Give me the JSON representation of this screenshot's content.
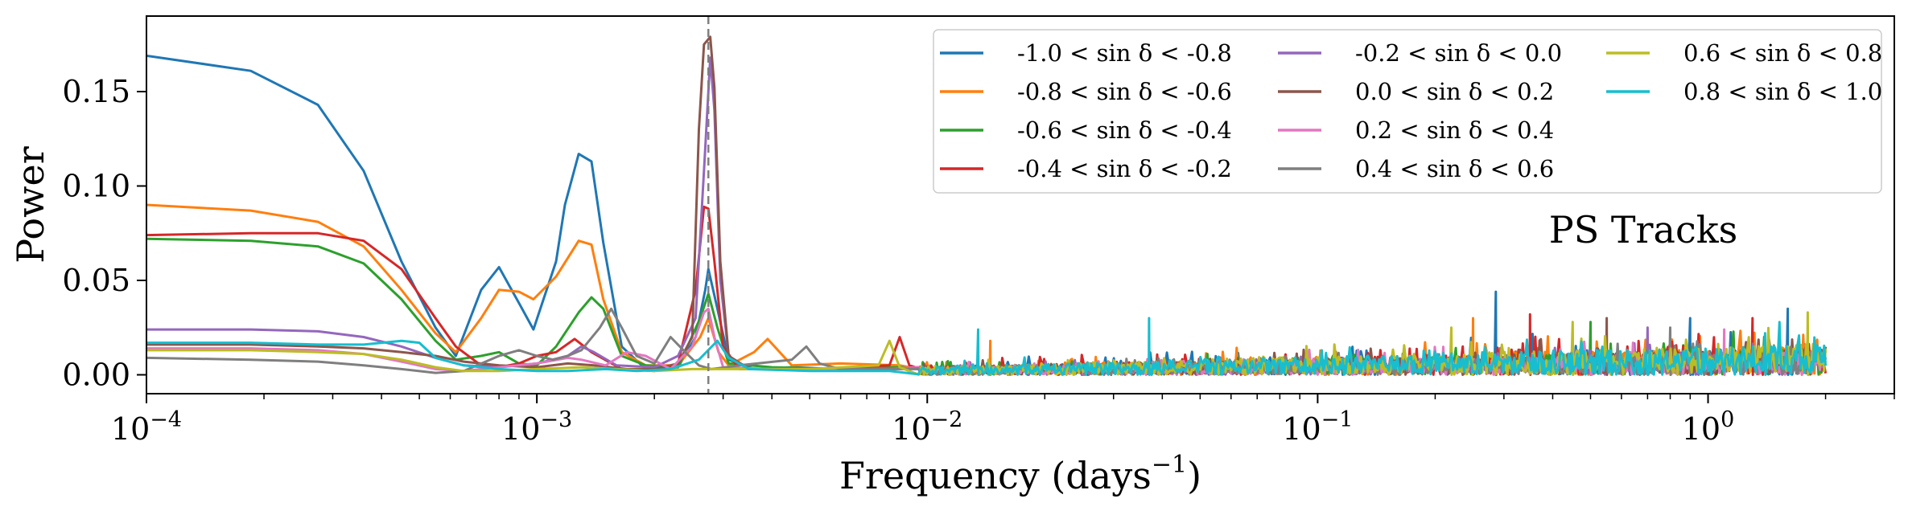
{
  "chart_data": {
    "type": "line",
    "annotation": "PS Tracks",
    "xlabel": "Frequency (days",
    "xlabel_exponent": "−1",
    "xlabel_close": ")",
    "ylabel": "Power",
    "xscale": "log",
    "xlim": [
      0.0001,
      3.0
    ],
    "ylim": [
      -0.01,
      0.19
    ],
    "grid": false,
    "legend_position": "top-right",
    "reference_line": {
      "x": 0.00275,
      "style": "dashed",
      "color": "#808080"
    },
    "x_ticks": [
      {
        "value": 0.0001,
        "base": "10",
        "exp": "−4"
      },
      {
        "value": 0.001,
        "base": "10",
        "exp": "−3"
      },
      {
        "value": 0.01,
        "base": "10",
        "exp": "−2"
      },
      {
        "value": 0.1,
        "base": "10",
        "exp": "−1"
      },
      {
        "value": 1,
        "base": "10",
        "exp": "0"
      }
    ],
    "y_ticks": [
      {
        "value": 0.0,
        "label": "0.00"
      },
      {
        "value": 0.05,
        "label": "0.05"
      },
      {
        "value": 0.1,
        "label": "0.10"
      },
      {
        "value": 0.15,
        "label": "0.15"
      }
    ],
    "noise": {
      "x_start": 0.0095,
      "x_end": 2.0
    },
    "series": [
      {
        "name": "-1.0 < sin δ < -0.8",
        "color": "#1f77b4",
        "points": [
          [
            0.0001,
            0.169
          ],
          [
            0.000185,
            0.161
          ],
          [
            0.000275,
            0.143
          ],
          [
            0.00036,
            0.108
          ],
          [
            0.00045,
            0.06
          ],
          [
            0.00055,
            0.025
          ],
          [
            0.00062,
            0.01
          ],
          [
            0.00072,
            0.045
          ],
          [
            0.0008,
            0.057
          ],
          [
            0.0009,
            0.038
          ],
          [
            0.00098,
            0.024
          ],
          [
            0.00112,
            0.06
          ],
          [
            0.00118,
            0.09
          ],
          [
            0.00128,
            0.117
          ],
          [
            0.00138,
            0.113
          ],
          [
            0.00148,
            0.07
          ],
          [
            0.00165,
            0.015
          ],
          [
            0.0019,
            0.003
          ],
          [
            0.0023,
            0.004
          ],
          [
            0.00255,
            0.02
          ],
          [
            0.0027,
            0.045
          ],
          [
            0.00275,
            0.056
          ],
          [
            0.0029,
            0.035
          ],
          [
            0.0031,
            0.008
          ],
          [
            0.0036,
            0.003
          ],
          [
            0.0045,
            0.004
          ],
          [
            0.006,
            0.003
          ],
          [
            0.0085,
            0.005
          ]
        ],
        "noise_amp": 0.012,
        "noise_spikes": [
          [
            0.286,
            0.044
          ],
          [
            1.6,
            0.035
          ],
          [
            0.9,
            0.03
          ]
        ]
      },
      {
        "name": "-0.8 < sin δ < -0.6",
        "color": "#ff7f0e",
        "points": [
          [
            0.0001,
            0.09
          ],
          [
            0.000185,
            0.087
          ],
          [
            0.000275,
            0.081
          ],
          [
            0.00036,
            0.068
          ],
          [
            0.00045,
            0.045
          ],
          [
            0.00055,
            0.022
          ],
          [
            0.00062,
            0.012
          ],
          [
            0.00072,
            0.03
          ],
          [
            0.0008,
            0.045
          ],
          [
            0.0009,
            0.044
          ],
          [
            0.00098,
            0.04
          ],
          [
            0.00112,
            0.052
          ],
          [
            0.00128,
            0.071
          ],
          [
            0.00138,
            0.069
          ],
          [
            0.00148,
            0.04
          ],
          [
            0.00165,
            0.012
          ],
          [
            0.0019,
            0.005
          ],
          [
            0.0023,
            0.005
          ],
          [
            0.00262,
            0.02
          ],
          [
            0.00275,
            0.03
          ],
          [
            0.00292,
            0.012
          ],
          [
            0.0031,
            0.005
          ],
          [
            0.0036,
            0.012
          ],
          [
            0.0039,
            0.019
          ],
          [
            0.0045,
            0.005
          ],
          [
            0.006,
            0.006
          ],
          [
            0.0085,
            0.005
          ]
        ],
        "noise_amp": 0.012,
        "noise_spikes": [
          [
            0.0145,
            0.018
          ],
          [
            0.25,
            0.03
          ]
        ]
      },
      {
        "name": "-0.6 < sin δ < -0.4",
        "color": "#2ca02c",
        "points": [
          [
            0.0001,
            0.072
          ],
          [
            0.000185,
            0.071
          ],
          [
            0.000275,
            0.068
          ],
          [
            0.00036,
            0.059
          ],
          [
            0.00045,
            0.04
          ],
          [
            0.00055,
            0.018
          ],
          [
            0.00062,
            0.008
          ],
          [
            0.00072,
            0.01
          ],
          [
            0.0008,
            0.012
          ],
          [
            0.0009,
            0.006
          ],
          [
            0.001,
            0.005
          ],
          [
            0.00112,
            0.015
          ],
          [
            0.00128,
            0.033
          ],
          [
            0.00138,
            0.041
          ],
          [
            0.00148,
            0.035
          ],
          [
            0.00165,
            0.01
          ],
          [
            0.0019,
            0.005
          ],
          [
            0.0023,
            0.004
          ],
          [
            0.00262,
            0.03
          ],
          [
            0.00275,
            0.043
          ],
          [
            0.0029,
            0.025
          ],
          [
            0.0031,
            0.006
          ],
          [
            0.004,
            0.004
          ],
          [
            0.006,
            0.003
          ],
          [
            0.0085,
            0.004
          ]
        ],
        "noise_amp": 0.011,
        "noise_spikes": [
          [
            0.5,
            0.028
          ]
        ]
      },
      {
        "name": "-0.4 < sin δ < -0.2",
        "color": "#d62728",
        "points": [
          [
            0.0001,
            0.074
          ],
          [
            0.000185,
            0.075
          ],
          [
            0.000275,
            0.075
          ],
          [
            0.00036,
            0.071
          ],
          [
            0.00045,
            0.056
          ],
          [
            0.00055,
            0.03
          ],
          [
            0.00062,
            0.015
          ],
          [
            0.00072,
            0.005
          ],
          [
            0.0008,
            0.004
          ],
          [
            0.0009,
            0.006
          ],
          [
            0.001,
            0.01
          ],
          [
            0.00112,
            0.012
          ],
          [
            0.00125,
            0.019
          ],
          [
            0.00138,
            0.012
          ],
          [
            0.00165,
            0.003
          ],
          [
            0.002,
            0.002
          ],
          [
            0.0023,
            0.006
          ],
          [
            0.00255,
            0.045
          ],
          [
            0.00268,
            0.089
          ],
          [
            0.00275,
            0.088
          ],
          [
            0.00285,
            0.06
          ],
          [
            0.003,
            0.015
          ],
          [
            0.0033,
            0.003
          ],
          [
            0.005,
            0.003
          ],
          [
            0.008,
            0.005
          ],
          [
            0.0085,
            0.02
          ],
          [
            0.009,
            0.005
          ]
        ],
        "noise_amp": 0.012,
        "noise_spikes": [
          [
            0.35,
            0.032
          ],
          [
            1.3,
            0.03
          ]
        ]
      },
      {
        "name": "-0.2 < sin δ < 0.0",
        "color": "#9467bd",
        "points": [
          [
            0.0001,
            0.024
          ],
          [
            0.000185,
            0.024
          ],
          [
            0.000275,
            0.023
          ],
          [
            0.00036,
            0.02
          ],
          [
            0.00045,
            0.015
          ],
          [
            0.00055,
            0.009
          ],
          [
            0.00065,
            0.005
          ],
          [
            0.0008,
            0.004
          ],
          [
            0.001,
            0.006
          ],
          [
            0.0012,
            0.01
          ],
          [
            0.0013,
            0.015
          ],
          [
            0.0014,
            0.012
          ],
          [
            0.0016,
            0.005
          ],
          [
            0.002,
            0.004
          ],
          [
            0.0023,
            0.01
          ],
          [
            0.00255,
            0.03
          ],
          [
            0.0027,
            0.12
          ],
          [
            0.00278,
            0.168
          ],
          [
            0.00285,
            0.14
          ],
          [
            0.00295,
            0.05
          ],
          [
            0.0031,
            0.01
          ],
          [
            0.0035,
            0.003
          ],
          [
            0.005,
            0.003
          ],
          [
            0.008,
            0.003
          ]
        ],
        "noise_amp": 0.01,
        "noise_spikes": [
          [
            0.7,
            0.025
          ]
        ]
      },
      {
        "name": "0.0 < sin δ < 0.2",
        "color": "#8c564b",
        "points": [
          [
            0.0001,
            0.016
          ],
          [
            0.000185,
            0.016
          ],
          [
            0.000275,
            0.015
          ],
          [
            0.00036,
            0.014
          ],
          [
            0.00045,
            0.012
          ],
          [
            0.00055,
            0.01
          ],
          [
            0.00065,
            0.007
          ],
          [
            0.0008,
            0.005
          ],
          [
            0.001,
            0.004
          ],
          [
            0.0012,
            0.006
          ],
          [
            0.0014,
            0.005
          ],
          [
            0.0017,
            0.003
          ],
          [
            0.002,
            0.003
          ],
          [
            0.0023,
            0.006
          ],
          [
            0.0025,
            0.02
          ],
          [
            0.0026,
            0.13
          ],
          [
            0.00268,
            0.175
          ],
          [
            0.00278,
            0.179
          ],
          [
            0.00285,
            0.152
          ],
          [
            0.00295,
            0.06
          ],
          [
            0.0031,
            0.01
          ],
          [
            0.0035,
            0.003
          ],
          [
            0.005,
            0.003
          ],
          [
            0.008,
            0.003
          ]
        ],
        "noise_amp": 0.011,
        "noise_spikes": [
          [
            0.55,
            0.03
          ]
        ]
      },
      {
        "name": "0.2 < sin δ < 0.4",
        "color": "#e377c2",
        "points": [
          [
            0.0001,
            0.014
          ],
          [
            0.000185,
            0.014
          ],
          [
            0.000275,
            0.013
          ],
          [
            0.00036,
            0.011
          ],
          [
            0.00045,
            0.007
          ],
          [
            0.00055,
            0.003
          ],
          [
            0.00065,
            0.002
          ],
          [
            0.0008,
            0.004
          ],
          [
            0.001,
            0.006
          ],
          [
            0.0012,
            0.009
          ],
          [
            0.0013,
            0.008
          ],
          [
            0.0015,
            0.005
          ],
          [
            0.0017,
            0.012
          ],
          [
            0.0019,
            0.01
          ],
          [
            0.0022,
            0.003
          ],
          [
            0.0025,
            0.015
          ],
          [
            0.00268,
            0.033
          ],
          [
            0.00275,
            0.035
          ],
          [
            0.00285,
            0.02
          ],
          [
            0.003,
            0.004
          ],
          [
            0.004,
            0.003
          ],
          [
            0.006,
            0.003
          ],
          [
            0.008,
            0.003
          ]
        ],
        "noise_amp": 0.01,
        "noise_spikes": [
          [
            1.1,
            0.024
          ]
        ]
      },
      {
        "name": "0.4 < sin δ < 0.6",
        "color": "#7f7f7f",
        "points": [
          [
            0.0001,
            0.009
          ],
          [
            0.000185,
            0.008
          ],
          [
            0.000275,
            0.007
          ],
          [
            0.00036,
            0.005
          ],
          [
            0.00045,
            0.003
          ],
          [
            0.00055,
            0.001
          ],
          [
            0.00065,
            0.002
          ],
          [
            0.0008,
            0.01
          ],
          [
            0.0009,
            0.013
          ],
          [
            0.001,
            0.01
          ],
          [
            0.0011,
            0.008
          ],
          [
            0.0012,
            0.01
          ],
          [
            0.0013,
            0.013
          ],
          [
            0.00145,
            0.025
          ],
          [
            0.00155,
            0.035
          ],
          [
            0.00165,
            0.025
          ],
          [
            0.0018,
            0.01
          ],
          [
            0.002,
            0.006
          ],
          [
            0.0022,
            0.02
          ],
          [
            0.0024,
            0.012
          ],
          [
            0.0026,
            0.005
          ],
          [
            0.0028,
            0.003
          ],
          [
            0.0033,
            0.005
          ],
          [
            0.0045,
            0.008
          ],
          [
            0.0049,
            0.015
          ],
          [
            0.0053,
            0.006
          ],
          [
            0.006,
            0.003
          ],
          [
            0.008,
            0.003
          ]
        ],
        "noise_amp": 0.01,
        "noise_spikes": [
          [
            0.8,
            0.025
          ]
        ]
      },
      {
        "name": "0.6 < sin δ < 0.8",
        "color": "#bcbd22",
        "points": [
          [
            0.0001,
            0.013
          ],
          [
            0.000185,
            0.013
          ],
          [
            0.000275,
            0.012
          ],
          [
            0.00036,
            0.011
          ],
          [
            0.00045,
            0.008
          ],
          [
            0.00055,
            0.004
          ],
          [
            0.00065,
            0.002
          ],
          [
            0.0008,
            0.002
          ],
          [
            0.001,
            0.003
          ],
          [
            0.0013,
            0.004
          ],
          [
            0.0016,
            0.003
          ],
          [
            0.002,
            0.002
          ],
          [
            0.0025,
            0.003
          ],
          [
            0.003,
            0.003
          ],
          [
            0.005,
            0.003
          ],
          [
            0.0075,
            0.005
          ],
          [
            0.008,
            0.018
          ],
          [
            0.0085,
            0.004
          ]
        ],
        "noise_amp": 0.013,
        "noise_spikes": [
          [
            1.8,
            0.033
          ],
          [
            0.45,
            0.028
          ],
          [
            0.22,
            0.025
          ]
        ]
      },
      {
        "name": "0.8 < sin δ < 1.0",
        "color": "#17becf",
        "points": [
          [
            0.0001,
            0.017
          ],
          [
            0.000185,
            0.017
          ],
          [
            0.000275,
            0.016
          ],
          [
            0.00036,
            0.016
          ],
          [
            0.00045,
            0.018
          ],
          [
            0.0005,
            0.017
          ],
          [
            0.00055,
            0.009
          ],
          [
            0.00065,
            0.005
          ],
          [
            0.0008,
            0.003
          ],
          [
            0.001,
            0.002
          ],
          [
            0.0012,
            0.002
          ],
          [
            0.0015,
            0.003
          ],
          [
            0.0018,
            0.002
          ],
          [
            0.0022,
            0.003
          ],
          [
            0.0026,
            0.008
          ],
          [
            0.0029,
            0.018
          ],
          [
            0.0031,
            0.009
          ],
          [
            0.0035,
            0.003
          ],
          [
            0.005,
            0.002
          ],
          [
            0.008,
            0.002
          ]
        ],
        "noise_amp": 0.013,
        "noise_spikes": [
          [
            0.0135,
            0.024
          ],
          [
            0.037,
            0.03
          ],
          [
            1.4,
            0.022
          ]
        ]
      }
    ]
  }
}
